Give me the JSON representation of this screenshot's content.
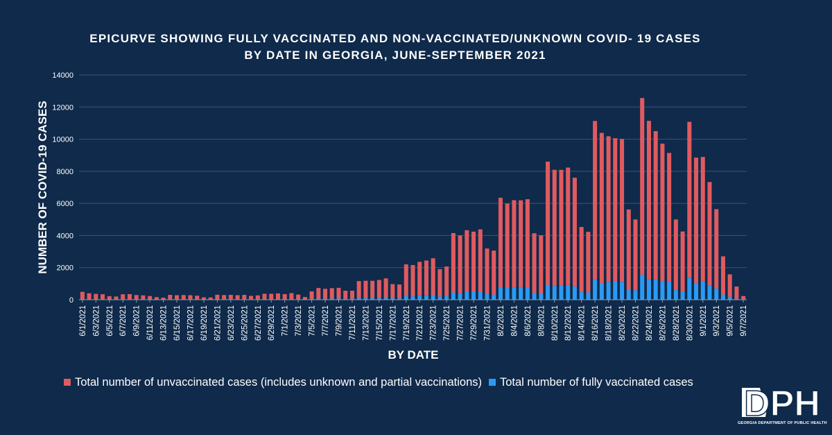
{
  "colors": {
    "background": "#0f2a4a",
    "unvaccinated": "#e05a5f",
    "vaccinated": "#2b9af3",
    "text": "#ffffff",
    "grid": "#3b5576"
  },
  "chart_data": {
    "type": "bar",
    "stacked": true,
    "title_line1": "EPICURVE SHOWING FULLY VACCINATED AND NON-VACCINATED/UNKNOWN COVID- 19 CASES",
    "title_line2": "BY DATE IN GEORGIA, JUNE-SEPTEMBER 2021",
    "xlabel": "BY DATE",
    "ylabel": "NUMBER OF COVID-19 CASES",
    "ylim": [
      0,
      14000
    ],
    "yticks": [
      0,
      2000,
      4000,
      6000,
      8000,
      10000,
      12000,
      14000
    ],
    "grid": true,
    "legend_position": "bottom",
    "categories": [
      "6/1/2021",
      "6/2/2021",
      "6/3/2021",
      "6/4/2021",
      "6/5/2021",
      "6/6/2021",
      "6/7/2021",
      "6/8/2021",
      "6/9/2021",
      "6/10/2021",
      "6/11/2021",
      "6/12/2021",
      "6/13/2021",
      "6/14/2021",
      "6/15/2021",
      "6/16/2021",
      "6/17/2021",
      "6/18/2021",
      "6/19/2021",
      "6/20/2021",
      "6/21/2021",
      "6/22/2021",
      "6/23/2021",
      "6/24/2021",
      "6/25/2021",
      "6/26/2021",
      "6/27/2021",
      "6/28/2021",
      "6/29/2021",
      "6/30/2021",
      "7/1/2021",
      "7/2/2021",
      "7/3/2021",
      "7/4/2021",
      "7/5/2021",
      "7/6/2021",
      "7/7/2021",
      "7/8/2021",
      "7/9/2021",
      "7/10/2021",
      "7/11/2021",
      "7/12/2021",
      "7/13/2021",
      "7/14/2021",
      "7/15/2021",
      "7/16/2021",
      "7/17/2021",
      "7/18/2021",
      "7/19/2021",
      "7/20/2021",
      "7/21/2021",
      "7/22/2021",
      "7/23/2021",
      "7/24/2021",
      "7/25/2021",
      "7/26/2021",
      "7/27/2021",
      "7/28/2021",
      "7/29/2021",
      "7/30/2021",
      "7/31/2021",
      "8/1/2021",
      "8/2/2021",
      "8/3/2021",
      "8/4/2021",
      "8/5/2021",
      "8/6/2021",
      "8/7/2021",
      "8/8/2021",
      "8/9/2021",
      "8/10/2021",
      "8/11/2021",
      "8/12/2021",
      "8/13/2021",
      "8/14/2021",
      "8/15/2021",
      "8/16/2021",
      "8/17/2021",
      "8/18/2021",
      "8/19/2021",
      "8/20/2021",
      "8/21/2021",
      "8/22/2021",
      "8/23/2021",
      "8/24/2021",
      "8/25/2021",
      "8/26/2021",
      "8/27/2021",
      "8/28/2021",
      "8/29/2021",
      "8/30/2021",
      "8/31/2021",
      "9/1/2021",
      "9/2/2021",
      "9/3/2021",
      "9/4/2021",
      "9/5/2021",
      "9/6/2021",
      "9/7/2021"
    ],
    "labeled_categories": [
      "6/1/2021",
      "6/3/2021",
      "6/5/2021",
      "6/7/2021",
      "6/9/2021",
      "6/11/2021",
      "6/13/2021",
      "6/15/2021",
      "6/17/2021",
      "6/19/2021",
      "6/21/2021",
      "6/23/2021",
      "6/25/2021",
      "6/27/2021",
      "6/29/2021",
      "7/1/2021",
      "7/3/2021",
      "7/5/2021",
      "7/7/2021",
      "7/9/2021",
      "7/11/2021",
      "7/13/2021",
      "7/15/2021",
      "7/17/2021",
      "7/19/2021",
      "7/21/2021",
      "7/23/2021",
      "7/25/2021",
      "7/27/2021",
      "7/29/2021",
      "7/31/2021",
      "8/2/2021",
      "8/4/2021",
      "8/6/2021",
      "8/8/2021",
      "8/10/2021",
      "8/12/2021",
      "8/14/2021",
      "8/16/2021",
      "8/18/2021",
      "8/20/2021",
      "8/22/2021",
      "8/24/2021",
      "8/26/2021",
      "8/28/2021",
      "8/30/2021",
      "9/1/2021",
      "9/3/2021",
      "9/5/2021",
      "9/7/2021"
    ],
    "series": [
      {
        "name": "Total number of unvaccinated cases (includes unknown and partial vaccinations)",
        "values": [
          450,
          370,
          330,
          310,
          200,
          180,
          310,
          320,
          260,
          240,
          210,
          140,
          120,
          270,
          250,
          260,
          250,
          220,
          130,
          120,
          280,
          260,
          270,
          250,
          270,
          210,
          240,
          330,
          330,
          350,
          310,
          370,
          290,
          150,
          470,
          670,
          620,
          650,
          670,
          500,
          500,
          1070,
          1080,
          1080,
          1130,
          1220,
          880,
          870,
          1970,
          1950,
          2110,
          2170,
          2300,
          1700,
          1840,
          3700,
          3580,
          3830,
          3720,
          3880,
          2840,
          2740,
          5570,
          5250,
          5430,
          5400,
          5530,
          3710,
          3600,
          7670,
          7240,
          7200,
          7310,
          6770,
          4040,
          3780,
          9850,
          9350,
          9070,
          8890,
          8900,
          4990,
          4410,
          11000,
          9880,
          9240,
          8550,
          8020,
          4400,
          3730,
          9730,
          7800,
          7760,
          6430,
          4940,
          2380,
          1400,
          760,
          200
        ],
        "color": "#e05a5f"
      },
      {
        "name": "Total number of fully vaccinated cases",
        "values": [
          40,
          30,
          30,
          30,
          20,
          20,
          30,
          30,
          30,
          30,
          20,
          20,
          10,
          30,
          30,
          30,
          30,
          30,
          20,
          20,
          30,
          30,
          30,
          30,
          30,
          30,
          30,
          40,
          40,
          40,
          40,
          40,
          30,
          20,
          50,
          60,
          60,
          70,
          70,
          60,
          60,
          90,
          100,
          100,
          100,
          110,
          90,
          80,
          230,
          210,
          250,
          270,
          280,
          200,
          230,
          450,
          420,
          500,
          520,
          500,
          350,
          320,
          780,
          730,
          770,
          790,
          730,
          430,
          410,
          930,
          850,
          890,
          920,
          830,
          490,
          450,
          1280,
          1040,
          1110,
          1170,
          1110,
          630,
          590,
          1560,
          1260,
          1260,
          1170,
          1120,
          600,
          520,
          1350,
          1050,
          1130,
          900,
          700,
          320,
          180,
          60,
          30
        ],
        "color": "#2b9af3"
      }
    ]
  },
  "legend": {
    "unvaccinated_label": "Total number of unvaccinated cases (includes unknown and partial vaccinations)",
    "vaccinated_label": "Total number of fully vaccinated cases"
  },
  "logo": {
    "text": "DPH",
    "subtext": "GEORGIA DEPARTMENT OF PUBLIC HEALTH"
  }
}
